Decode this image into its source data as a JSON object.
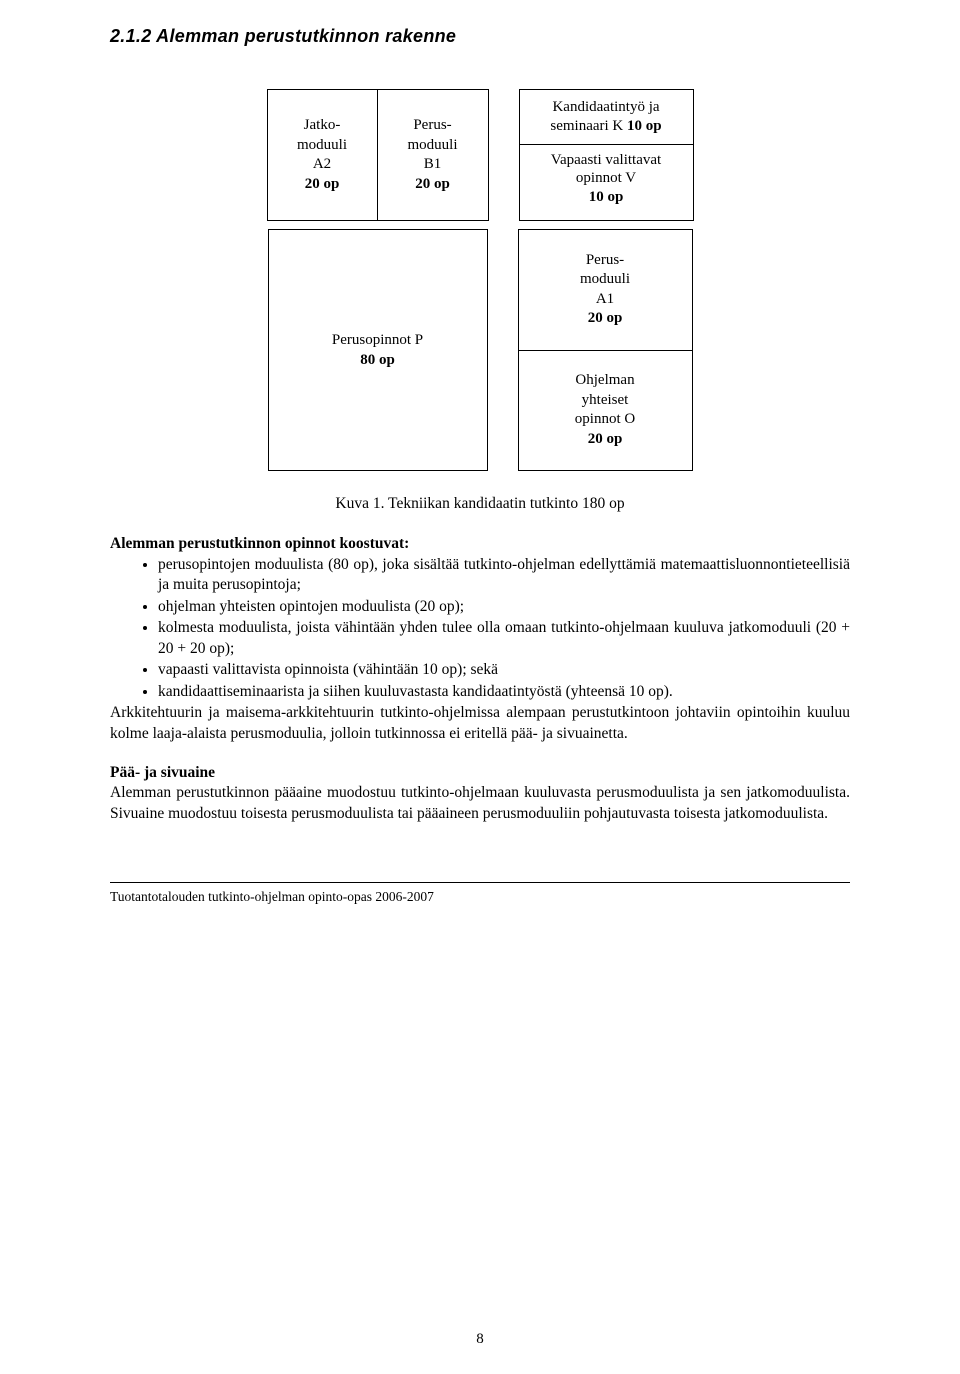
{
  "section_heading": "2.1.2 Alemman perustutkinnon rakenne",
  "diagram": {
    "a2": {
      "l1": "Jatko-",
      "l2": "moduuli",
      "l3": "A2",
      "l4": "20 op"
    },
    "b1": {
      "l1": "Perus-",
      "l2": "moduuli",
      "l3": "B1",
      "l4": "20 op"
    },
    "k": {
      "l1": "Kandidaatintyö ja",
      "l2_a": "seminaari K ",
      "l2_b": "10 op"
    },
    "v": {
      "l1": "Vapaasti valittavat",
      "l2": "opinnot V",
      "l3": "10 op"
    },
    "p": {
      "l1": "Perusopinnot P",
      "l2": "80 op"
    },
    "a1": {
      "l1": "Perus-",
      "l2": "moduuli",
      "l3": "A1",
      "l4": "20 op"
    },
    "o": {
      "l1": "Ohjelman",
      "l2": "yhteiset",
      "l3": "opinnot O",
      "l4": "20 op"
    }
  },
  "caption": "Kuva 1. Tekniikan kandidaatin tutkinto 180 op",
  "intro_heading": "Alemman perustutkinnon opinnot koostuvat:",
  "bullets": {
    "b0": "perusopintojen moduulista (80 op), joka sisältää tutkinto-ohjelman edellyttämiä matemaattisluonnontieteellisiä ja muita perusopintoja;",
    "b1": "ohjelman yhteisten opintojen moduulista (20 op);",
    "b2": "kolmesta moduulista, joista vähintään yhden tulee olla omaan tutkinto-ohjelmaan kuuluva jatkomoduuli (20 + 20 + 20 op);",
    "b3": "vapaasti valittavista opinnoista (vähintään 10 op); sekä",
    "b4": "kandidaattiseminaarista ja siihen kuuluvastasta kandidaatintyöstä (yhteensä 10 op)."
  },
  "after_bullets": "Arkkitehtuurin ja maisema-arkkitehtuurin tutkinto-ohjelmissa alempaan perustutkintoon johtaviin opintoihin kuuluu kolme laaja-alaista perusmoduulia, jolloin tutkinnossa ei eritellä pää- ja sivuainetta.",
  "sub_heading": "Pää- ja sivuaine",
  "sub_text": "Alemman perustutkinnon pääaine muodostuu tutkinto-ohjelmaan kuuluvasta perusmoduulista ja sen jatkomoduulista. Sivuaine muodostuu toisesta perusmoduulista tai pääaineen perusmoduuliin pohjautuvasta toisesta jatkomoduulista.",
  "footer": "Tuotantotalouden tutkinto-ohjelman opinto-opas 2006-2007",
  "page_number": "8"
}
